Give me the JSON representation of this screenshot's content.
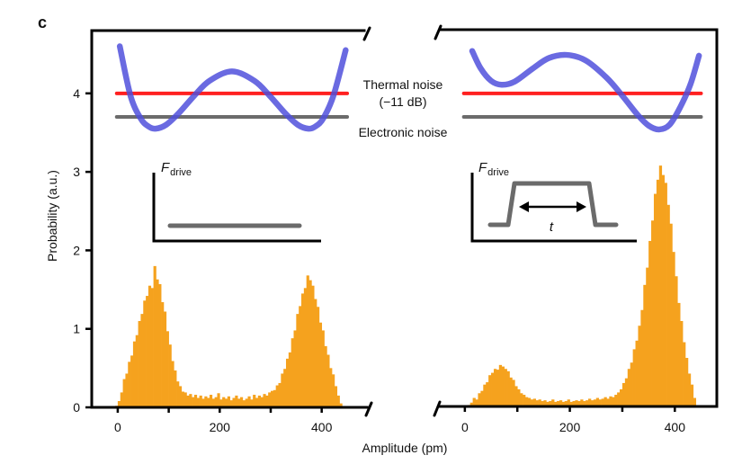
{
  "chart_data": {
    "type": "bar",
    "title": "",
    "panel_label": "c",
    "xlabel": "Amplitude (pm)",
    "ylabel": "Probability (a.u.)",
    "ylim": [
      0,
      4.8
    ],
    "yticks": [
      0,
      1,
      2,
      3,
      4
    ],
    "ytick_labels": [
      "0",
      "1",
      "2",
      "3",
      "4"
    ],
    "grid": false,
    "legend": "none",
    "bin_start": -10,
    "bin_width": 5,
    "colors": {
      "histogram": "#F5A21E",
      "potential": "#5050DC",
      "thermal_noise": "#FF2020",
      "electronic_noise": "#6B6B6B",
      "axes": "#000000"
    },
    "noise_levels": [
      {
        "name": "Thermal noise",
        "sublabel": "(−11 dB)",
        "y": 4.0,
        "x_range": [
          -2,
          450
        ],
        "color_key": "thermal_noise"
      },
      {
        "name": "Electronic noise",
        "y": 3.7,
        "x_range": [
          -2,
          450
        ],
        "color_key": "electronic_noise"
      }
    ],
    "panels": [
      {
        "name": "constant-drive",
        "xlim": [
          -51,
          487
        ],
        "xticks": [
          0,
          100,
          200,
          300,
          400
        ],
        "xtick_label_values": [
          0,
          200,
          400
        ],
        "xtick_labels": [
          "0",
          "200",
          "400"
        ],
        "inset": {
          "force_symbol": "F",
          "force_subscript": "drive"
        },
        "histogram": [
          0,
          0.02,
          0.08,
          0.19,
          0.36,
          0.43,
          0.58,
          0.66,
          0.84,
          0.92,
          1.1,
          1.19,
          1.36,
          1.42,
          1.55,
          1.52,
          1.8,
          1.63,
          1.57,
          1.34,
          1.22,
          0.97,
          0.8,
          0.59,
          0.47,
          0.33,
          0.27,
          0.2,
          0.19,
          0.15,
          0.17,
          0.13,
          0.16,
          0.12,
          0.15,
          0.11,
          0.14,
          0.12,
          0.16,
          0.11,
          0.13,
          0.18,
          0.1,
          0.13,
          0.11,
          0.14,
          0.09,
          0.12,
          0.15,
          0.11,
          0.13,
          0.09,
          0.11,
          0.14,
          0.1,
          0.16,
          0.12,
          0.15,
          0.13,
          0.17,
          0.15,
          0.19,
          0.21,
          0.22,
          0.28,
          0.31,
          0.43,
          0.49,
          0.62,
          0.7,
          0.88,
          0.98,
          1.19,
          1.29,
          1.45,
          1.52,
          1.68,
          1.62,
          1.55,
          1.38,
          1.28,
          1.08,
          0.98,
          0.78,
          0.67,
          0.5,
          0.42,
          0.27,
          0.15,
          0.05,
          0.01,
          0
        ],
        "potential": {
          "x": [
            4,
            25,
            45,
            60,
            74,
            95,
            120,
            150,
            180,
            224,
            268,
            298,
            328,
            353,
            374,
            388,
            403,
            423,
            447
          ],
          "y": [
            4.6,
            3.97,
            3.68,
            3.58,
            3.55,
            3.6,
            3.75,
            3.97,
            4.16,
            4.28,
            4.16,
            3.97,
            3.75,
            3.6,
            3.55,
            3.58,
            3.68,
            3.97,
            4.55
          ]
        }
      },
      {
        "name": "pulsed-drive",
        "xlim": [
          -46,
          480
        ],
        "xticks": [
          0,
          100,
          200,
          300,
          400
        ],
        "xtick_label_values": [
          0,
          200,
          400
        ],
        "xtick_labels": [
          "0",
          "200",
          "400"
        ],
        "inset": {
          "force_symbol": "F",
          "force_subscript": "drive",
          "duration_label": "t"
        },
        "histogram": [
          0,
          0,
          0.01,
          0.03,
          0.06,
          0.12,
          0.1,
          0.18,
          0.21,
          0.29,
          0.32,
          0.41,
          0.44,
          0.49,
          0.48,
          0.54,
          0.52,
          0.49,
          0.46,
          0.38,
          0.35,
          0.27,
          0.23,
          0.18,
          0.16,
          0.13,
          0.12,
          0.1,
          0.11,
          0.09,
          0.1,
          0.08,
          0.09,
          0.07,
          0.08,
          0.1,
          0.07,
          0.08,
          0.09,
          0.07,
          0.08,
          0.1,
          0.07,
          0.08,
          0.09,
          0.08,
          0.1,
          0.08,
          0.09,
          0.11,
          0.09,
          0.1,
          0.12,
          0.1,
          0.11,
          0.13,
          0.11,
          0.14,
          0.13,
          0.16,
          0.19,
          0.23,
          0.31,
          0.37,
          0.49,
          0.57,
          0.74,
          0.85,
          1.04,
          1.24,
          1.56,
          1.78,
          2.12,
          2.38,
          2.72,
          2.9,
          3.08,
          2.96,
          2.86,
          2.58,
          2.34,
          1.98,
          1.67,
          1.33,
          1.1,
          0.83,
          0.63,
          0.43,
          0.29,
          0.12,
          0.02,
          0
        ],
        "potential": {
          "x": [
            14,
            30,
            50,
            70,
            95,
            130,
            160,
            194,
            230,
            270,
            300,
            330,
            350,
            370,
            390,
            410,
            430,
            446
          ],
          "y": [
            4.54,
            4.32,
            4.16,
            4.11,
            4.15,
            4.32,
            4.45,
            4.49,
            4.42,
            4.2,
            3.97,
            3.72,
            3.59,
            3.54,
            3.6,
            3.82,
            4.12,
            4.48
          ]
        }
      }
    ]
  }
}
